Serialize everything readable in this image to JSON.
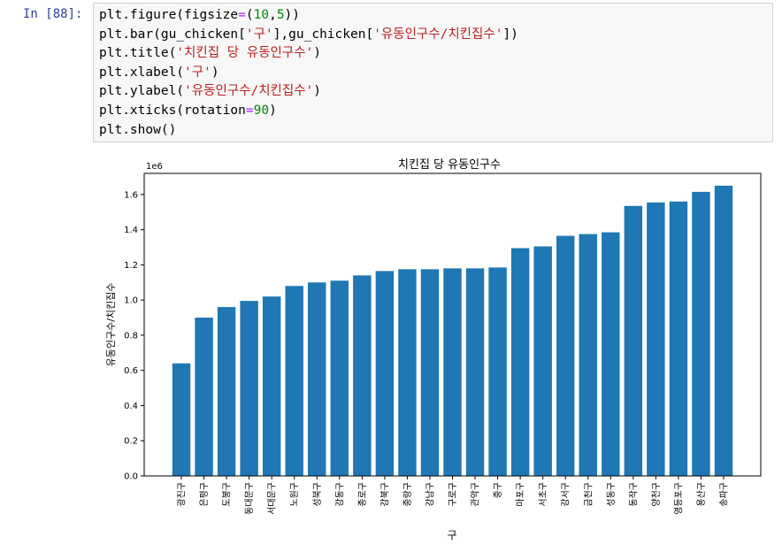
{
  "prompt": "In [88]:",
  "code": {
    "l1_a": "plt.figure(figsize",
    "l1_eq": "=",
    "l1_b": "(",
    "l1_n1": "10",
    "l1_c": ",",
    "l1_n2": "5",
    "l1_d": "))",
    "l2_a": "plt.bar(gu_chicken[",
    "l2_s1": "'구'",
    "l2_b": "],gu_chicken[",
    "l2_s2": "'유동인구수/치킨집수'",
    "l2_c": "])",
    "l3_a": "plt.title(",
    "l3_s": "'치킨집 당 유동인구수'",
    "l3_b": ")",
    "l4_a": "plt.xlabel(",
    "l4_s": "'구'",
    "l4_b": ")",
    "l5_a": "plt.ylabel(",
    "l5_s": "'유동인구수/치킨집수'",
    "l5_b": ")",
    "l6_a": "plt.xticks(rotation",
    "l6_eq": "=",
    "l6_n": "90",
    "l6_b": ")",
    "l7": "plt.show()"
  },
  "chart_data": {
    "type": "bar",
    "title": "치킨집 당 유동인구수",
    "xlabel": "구",
    "ylabel": "유동인구수/치킨집수",
    "offset_text": "1e6",
    "ylim": [
      0,
      1.72
    ],
    "yticks": [
      "0.0",
      "0.2",
      "0.4",
      "0.6",
      "0.8",
      "1.0",
      "1.2",
      "1.4",
      "1.6"
    ],
    "color": "#1f77b4",
    "categories": [
      "광진구",
      "은평구",
      "도봉구",
      "동대문구",
      "서대문구",
      "노원구",
      "성북구",
      "강동구",
      "종로구",
      "강북구",
      "중랑구",
      "강남구",
      "구로구",
      "관악구",
      "중구",
      "마포구",
      "서초구",
      "강서구",
      "금천구",
      "성동구",
      "동작구",
      "양천구",
      "영등포구",
      "용산구",
      "송파구"
    ],
    "values": [
      0.64,
      0.9,
      0.96,
      0.995,
      1.02,
      1.08,
      1.1,
      1.11,
      1.14,
      1.165,
      1.175,
      1.175,
      1.18,
      1.18,
      1.185,
      1.295,
      1.305,
      1.365,
      1.375,
      1.385,
      1.535,
      1.555,
      1.56,
      1.615,
      1.65
    ]
  }
}
